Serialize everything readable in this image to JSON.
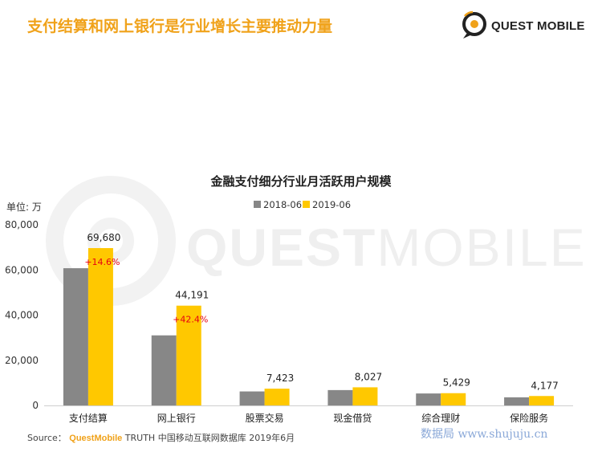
{
  "headline": "支付结算和网上银行是行业增长主要推动力量",
  "brand": {
    "logo_text": "QUEST MOBILE",
    "watermark_bold": "QUEST",
    "watermark_light": "MOBILE",
    "accent_color": "#f0a21a"
  },
  "chart_data": {
    "type": "bar",
    "title": "金融支付细分行业月活跃用户规模",
    "unit_label": "单位: 万",
    "categories": [
      "支付结算",
      "网上银行",
      "股票交易",
      "现金借贷",
      "综合理财",
      "保险服务"
    ],
    "series": [
      {
        "name": "2018-06",
        "color": "#878787",
        "values": [
          60775,
          31033,
          6200,
          6800,
          5300,
          3600
        ]
      },
      {
        "name": "2019-06",
        "color": "#ffc800",
        "values": [
          69680,
          44191,
          7423,
          8027,
          5429,
          4177
        ]
      }
    ],
    "value_labels": [
      "69,680",
      "44,191",
      "7,423",
      "8,027",
      "5,429",
      "4,177"
    ],
    "growth_labels": [
      "+14.6%",
      "+42.4%",
      null,
      null,
      null,
      null
    ],
    "growth_color": "#e60012",
    "ylim": [
      0,
      80000
    ],
    "yticks": [
      "0",
      "20,000",
      "40,000",
      "60,000",
      "80,000"
    ],
    "ytick_values": [
      0,
      20000,
      40000,
      60000,
      80000
    ],
    "legend_position": "top-center",
    "grid": false
  },
  "footer": {
    "source_prefix": "Source：",
    "source_brand": "QuestMobile",
    "source_rest": " TRUTH 中国移动互联网数据库 2019年6月",
    "site_text": "数据局 www.shujuju.cn"
  }
}
